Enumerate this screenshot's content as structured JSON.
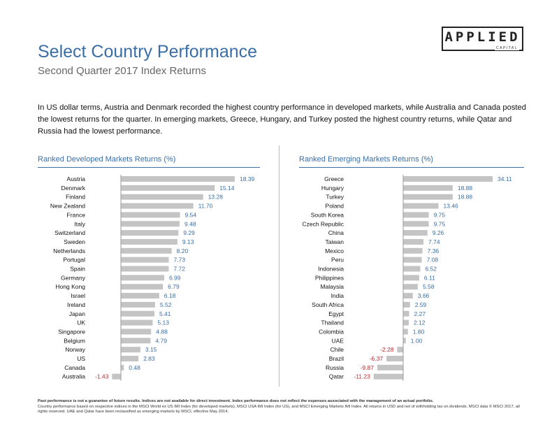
{
  "header": {
    "logo_word": "APPLIED",
    "logo_sub": "CAPITAL",
    "title": "Select Country Performance",
    "subtitle": "Second Quarter 2017 Index Returns",
    "intro": "In US dollar terms, Austria and Denmark recorded the highest country performance in developed markets, while Australia and Canada posted the lowest returns for the quarter. In emerging markets, Greece, Hungary, and Turkey posted the highest country returns, while Qatar and Russia had the lowest performance."
  },
  "colors": {
    "accent": "#3a6ea5",
    "bar": "#c4c4c4",
    "negative": "#c0272d",
    "positive_label": "#3a6ea5"
  },
  "chart_data": [
    {
      "type": "bar",
      "orientation": "horizontal",
      "title": "Ranked Developed Markets Returns (%)",
      "categories": [
        "Austria",
        "Denmark",
        "Finland",
        "New Zealand",
        "France",
        "Italy",
        "Switzerland",
        "Sweden",
        "Netherlands",
        "Portugal",
        "Spain",
        "Germany",
        "Hong Kong",
        "Israel",
        "Ireland",
        "Japan",
        "UK",
        "Singapore",
        "Belgium",
        "Norway",
        "US",
        "Canada",
        "Australia"
      ],
      "values": [
        18.39,
        15.14,
        13.28,
        11.7,
        9.54,
        9.48,
        9.29,
        9.13,
        8.2,
        7.73,
        7.72,
        6.99,
        6.79,
        6.18,
        5.52,
        5.41,
        5.13,
        4.88,
        4.79,
        3.15,
        2.83,
        0.48,
        -1.43
      ],
      "labels": [
        "18.39",
        "15.14",
        "13.28",
        "11.70",
        "9.54",
        "9.48",
        "9.29",
        "9.13",
        "8.20",
        "7.73",
        "7.72",
        "6.99",
        "6.79",
        "6.18",
        "5.52",
        "5.41",
        "5.13",
        "4.88",
        "4.79",
        "3.15",
        "2.83",
        "0.48",
        "-1.43"
      ],
      "xlim": [
        -1.43,
        18.39
      ]
    },
    {
      "type": "bar",
      "orientation": "horizontal",
      "title": "Ranked Emerging Markets Returns (%)",
      "categories": [
        "Greece",
        "Hungary",
        "Turkey",
        "Poland",
        "South Korea",
        "Czech Republic",
        "China",
        "Taiwan",
        "Mexico",
        "Peru",
        "Indonesia",
        "Philippines",
        "Malaysia",
        "India",
        "South Africa",
        "Egypt",
        "Thailand",
        "Colombia",
        "UAE",
        "Chile",
        "Brazil",
        "Russia",
        "Qatar"
      ],
      "values": [
        34.11,
        18.88,
        18.88,
        13.46,
        9.75,
        9.75,
        9.26,
        7.74,
        7.36,
        7.08,
        6.52,
        6.11,
        5.58,
        3.66,
        2.59,
        2.27,
        2.12,
        1.8,
        1.0,
        -2.28,
        -6.37,
        -9.87,
        -11.23
      ],
      "labels": [
        "34.11",
        "18.88",
        "18.88",
        "13.46",
        "9.75",
        "9.75",
        "9.26",
        "7.74",
        "7.36",
        "7.08",
        "6.52",
        "6.11",
        "5.58",
        "3.66",
        "2.59",
        "2.27",
        "2.12",
        "1.80",
        "1.00",
        "-2.28",
        "-6.37",
        "-9.87",
        "-11.23"
      ],
      "xlim": [
        -11.23,
        34.11
      ]
    }
  ],
  "footer": {
    "bold": "Past performance is not a guarantee of future results. Indices are not available for direct investment. Index performance does not reflect the expenses associated with the management of an actual portfolio.",
    "text": "Country performance based on respective indices in the MSCI World ex US IMI Index (for developed markets), MSCI USA IMI Index (for US), and MSCI Emerging Markets IMI Index. All returns in USD and net of withholding tax on dividends. MSCI data © MSCI 2017, all rights reserved. UAE and Qatar have been reclassified as emerging markets by MSCI, effective May 2014."
  }
}
